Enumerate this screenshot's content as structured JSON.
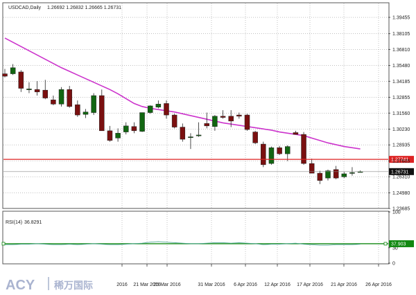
{
  "header": {
    "symbol": "USDCAD,Daily",
    "ohlc": "1.26692 1.26832 1.26665 1.26731"
  },
  "rsi_header": {
    "label": "RSI(14)",
    "value": "36.8291"
  },
  "watermark": {
    "brand": "ACY",
    "chinese": "稀万国际"
  },
  "colors": {
    "bull": "#116611",
    "bear": "#7a1010",
    "ma": "#cc33cc",
    "hline": "#dd2222",
    "rsi_line": "#55aa99",
    "rsi_level": "#118811",
    "grid": "#999999"
  },
  "chart_data": [
    {
      "type": "candlestick",
      "ylim": [
        1.2375,
        1.406
      ],
      "price_ticks": [
        "1.39455",
        "1.38105",
        "1.36810",
        "1.35480",
        "1.34185",
        "1.32855",
        "1.31560",
        "1.30230",
        "1.28935",
        "1.27605",
        "1.26310",
        "1.24980",
        "1.23685"
      ],
      "x_labels": [
        "2016",
        "21 Mar 2016",
        "25 Mar 2016",
        "31 Mar 2016",
        "6 Apr 2016",
        "12 Apr 2016",
        "17 Apr 2016",
        "21 Apr 2016",
        "26 Apr 2016"
      ],
      "candles": [
        {
          "o": 1.348,
          "h": 1.352,
          "l": 1.345,
          "c": 1.346
        },
        {
          "o": 1.348,
          "h": 1.356,
          "l": 1.347,
          "c": 1.353
        },
        {
          "o": 1.3495,
          "h": 1.351,
          "l": 1.333,
          "c": 1.336
        },
        {
          "o": 1.335,
          "h": 1.341,
          "l": 1.332,
          "c": 1.3355
        },
        {
          "o": 1.335,
          "h": 1.342,
          "l": 1.33,
          "c": 1.333
        },
        {
          "o": 1.3345,
          "h": 1.343,
          "l": 1.327,
          "c": 1.328
        },
        {
          "o": 1.3265,
          "h": 1.33,
          "l": 1.322,
          "c": 1.323
        },
        {
          "o": 1.323,
          "h": 1.337,
          "l": 1.321,
          "c": 1.335
        },
        {
          "o": 1.335,
          "h": 1.338,
          "l": 1.32,
          "c": 1.321
        },
        {
          "o": 1.3225,
          "h": 1.326,
          "l": 1.3125,
          "c": 1.314
        },
        {
          "o": 1.3145,
          "h": 1.319,
          "l": 1.3115,
          "c": 1.3165
        },
        {
          "o": 1.316,
          "h": 1.332,
          "l": 1.314,
          "c": 1.33
        },
        {
          "o": 1.33,
          "h": 1.335,
          "l": 1.301,
          "c": 1.301
        },
        {
          "o": 1.301,
          "h": 1.305,
          "l": 1.292,
          "c": 1.293
        },
        {
          "o": 1.295,
          "h": 1.303,
          "l": 1.292,
          "c": 1.299
        },
        {
          "o": 1.3,
          "h": 1.308,
          "l": 1.298,
          "c": 1.305
        },
        {
          "o": 1.3045,
          "h": 1.308,
          "l": 1.299,
          "c": 1.301
        },
        {
          "o": 1.3005,
          "h": 1.316,
          "l": 1.3,
          "c": 1.316
        },
        {
          "o": 1.316,
          "h": 1.322,
          "l": 1.315,
          "c": 1.3215
        },
        {
          "o": 1.3205,
          "h": 1.326,
          "l": 1.3195,
          "c": 1.323
        },
        {
          "o": 1.3235,
          "h": 1.326,
          "l": 1.311,
          "c": 1.314
        },
        {
          "o": 1.314,
          "h": 1.315,
          "l": 1.303,
          "c": 1.304
        },
        {
          "o": 1.304,
          "h": 1.307,
          "l": 1.292,
          "c": 1.294
        },
        {
          "o": 1.296,
          "h": 1.299,
          "l": 1.286,
          "c": 1.296
        },
        {
          "o": 1.297,
          "h": 1.308,
          "l": 1.296,
          "c": 1.2975
        },
        {
          "o": 1.307,
          "h": 1.316,
          "l": 1.303,
          "c": 1.305
        },
        {
          "o": 1.3045,
          "h": 1.314,
          "l": 1.301,
          "c": 1.313
        },
        {
          "o": 1.313,
          "h": 1.318,
          "l": 1.311,
          "c": 1.312
        },
        {
          "o": 1.313,
          "h": 1.318,
          "l": 1.304,
          "c": 1.309
        },
        {
          "o": 1.314,
          "h": 1.316,
          "l": 1.311,
          "c": 1.313
        },
        {
          "o": 1.314,
          "h": 1.315,
          "l": 1.301,
          "c": 1.302
        },
        {
          "o": 1.3,
          "h": 1.301,
          "l": 1.29,
          "c": 1.291
        },
        {
          "o": 1.29,
          "h": 1.292,
          "l": 1.271,
          "c": 1.273
        },
        {
          "o": 1.274,
          "h": 1.288,
          "l": 1.273,
          "c": 1.287
        },
        {
          "o": 1.287,
          "h": 1.2885,
          "l": 1.281,
          "c": 1.282
        },
        {
          "o": 1.282,
          "h": 1.289,
          "l": 1.276,
          "c": 1.288
        },
        {
          "o": 1.2995,
          "h": 1.301,
          "l": 1.298,
          "c": 1.298
        },
        {
          "o": 1.298,
          "h": 1.3,
          "l": 1.273,
          "c": 1.274
        },
        {
          "o": 1.274,
          "h": 1.278,
          "l": 1.266,
          "c": 1.266
        },
        {
          "o": 1.266,
          "h": 1.268,
          "l": 1.257,
          "c": 1.26
        },
        {
          "o": 1.262,
          "h": 1.269,
          "l": 1.26,
          "c": 1.268
        },
        {
          "o": 1.269,
          "h": 1.272,
          "l": 1.261,
          "c": 1.262
        },
        {
          "o": 1.263,
          "h": 1.267,
          "l": 1.262,
          "c": 1.2655
        },
        {
          "o": 1.266,
          "h": 1.271,
          "l": 1.264,
          "c": 1.2665
        },
        {
          "o": 1.2669,
          "h": 1.2683,
          "l": 1.2667,
          "c": 1.2673
        }
      ],
      "moving_average": [
        1.3775,
        1.374,
        1.3705,
        1.367,
        1.3635,
        1.36,
        1.3565,
        1.353,
        1.35,
        1.347,
        1.344,
        1.341,
        1.338,
        1.335,
        1.3315,
        1.3275,
        1.3235,
        1.321,
        1.3195,
        1.3185,
        1.3175,
        1.3165,
        1.315,
        1.3135,
        1.312,
        1.3105,
        1.309,
        1.3075,
        1.3065,
        1.3055,
        1.3045,
        1.3035,
        1.3025,
        1.3015,
        1.3,
        1.299,
        1.298,
        1.297,
        1.295,
        1.293,
        1.291,
        1.2895,
        1.288,
        1.287,
        1.286
      ],
      "horizontal_line": 1.27741,
      "hline_label": "1.27741",
      "current_price": 1.26731,
      "current_label": "1.26731"
    },
    {
      "type": "line",
      "series": [
        {
          "name": "RSI(14)",
          "values": [
            36,
            36,
            37,
            37,
            38,
            37,
            36,
            36,
            37,
            36,
            37,
            38,
            37,
            36,
            36,
            37,
            38,
            39,
            41,
            42,
            41,
            40,
            39,
            38,
            38,
            39,
            40,
            40,
            39,
            40,
            39,
            38,
            36,
            37,
            37,
            38,
            39,
            37,
            36,
            35,
            35,
            36,
            36,
            36,
            37
          ]
        }
      ],
      "ylim": [
        0,
        100
      ],
      "ticks": [
        "100",
        "30",
        "0"
      ],
      "level": 37.9032,
      "level_label": "37.9032",
      "axis_label": "37.903"
    }
  ]
}
